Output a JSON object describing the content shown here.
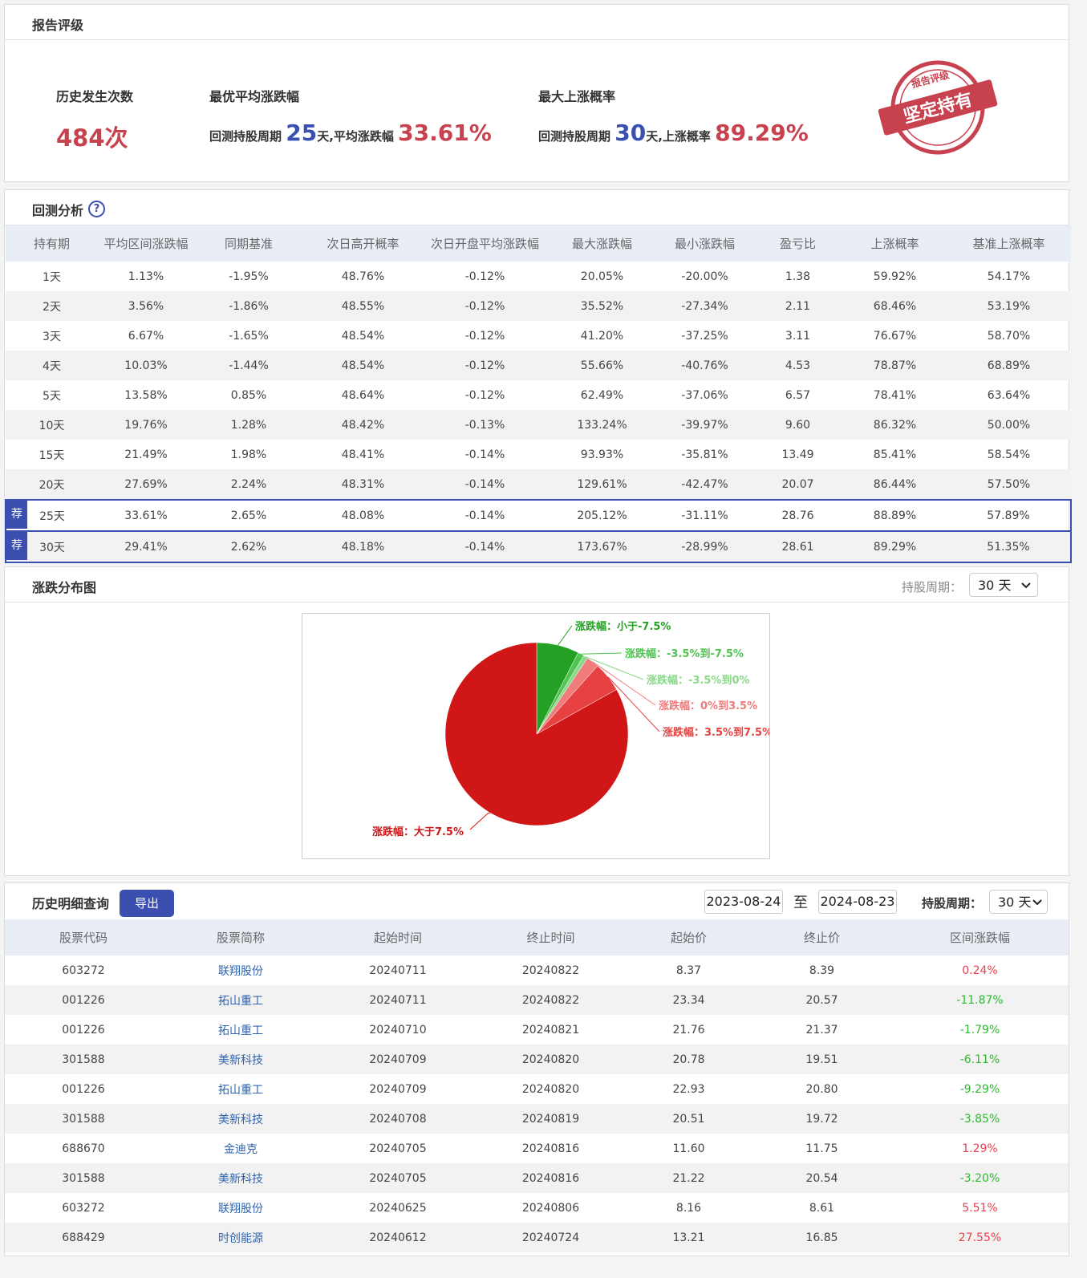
{
  "report": {
    "title": "报告评级",
    "count_label": "历史发生次数",
    "count": "484次",
    "best_avg_label": "最优平均涨跌幅",
    "best_avg_prefix": "回测持股周期",
    "best_avg_days": "25",
    "best_avg_mid": "天,平均涨跌幅",
    "best_avg_value": "33.61%",
    "max_up_label": "最大上涨概率",
    "max_up_prefix": "回测持股周期",
    "max_up_days": "30",
    "max_up_mid": "天,上涨概率",
    "max_up_value": "89.29%",
    "stamp_top": "报告评级",
    "stamp_main": "坚定持有"
  },
  "backtest": {
    "title": "回测分析",
    "help": "?",
    "columns": [
      "持有期",
      "平均区间涨跌幅",
      "同期基准",
      "次日高开概率",
      "次日开盘平均涨跌幅",
      "最大涨跌幅",
      "最小涨跌幅",
      "盈亏比",
      "上涨概率",
      "基准上涨概率"
    ],
    "rows": [
      {
        "cells": [
          "1天",
          "1.13%",
          "-1.95%",
          "48.76%",
          "-0.12%",
          "20.05%",
          "-20.00%",
          "1.38",
          "59.92%",
          "54.17%"
        ]
      },
      {
        "cells": [
          "2天",
          "3.56%",
          "-1.86%",
          "48.55%",
          "-0.12%",
          "35.52%",
          "-27.34%",
          "2.11",
          "68.46%",
          "53.19%"
        ]
      },
      {
        "cells": [
          "3天",
          "6.67%",
          "-1.65%",
          "48.54%",
          "-0.12%",
          "41.20%",
          "-37.25%",
          "3.11",
          "76.67%",
          "58.70%"
        ]
      },
      {
        "cells": [
          "4天",
          "10.03%",
          "-1.44%",
          "48.54%",
          "-0.12%",
          "55.66%",
          "-40.76%",
          "4.53",
          "78.87%",
          "68.89%"
        ]
      },
      {
        "cells": [
          "5天",
          "13.58%",
          "0.85%",
          "48.64%",
          "-0.12%",
          "62.49%",
          "-37.06%",
          "6.57",
          "78.41%",
          "63.64%"
        ]
      },
      {
        "cells": [
          "10天",
          "19.76%",
          "1.28%",
          "48.42%",
          "-0.13%",
          "133.24%",
          "-39.97%",
          "9.60",
          "86.32%",
          "50.00%"
        ]
      },
      {
        "cells": [
          "15天",
          "21.49%",
          "1.98%",
          "48.41%",
          "-0.14%",
          "93.93%",
          "-35.81%",
          "13.49",
          "85.41%",
          "58.54%"
        ]
      },
      {
        "cells": [
          "20天",
          "27.69%",
          "2.24%",
          "48.31%",
          "-0.14%",
          "129.61%",
          "-42.47%",
          "20.07",
          "86.44%",
          "57.50%"
        ]
      },
      {
        "tag": "荐",
        "cells": [
          "25天",
          "33.61%",
          "2.65%",
          "48.08%",
          "-0.14%",
          "205.12%",
          "-31.11%",
          "28.76",
          "88.89%",
          "57.89%"
        ]
      },
      {
        "tag": "荐",
        "cells": [
          "30天",
          "29.41%",
          "2.62%",
          "48.18%",
          "-0.14%",
          "173.67%",
          "-28.99%",
          "28.61",
          "89.29%",
          "51.35%"
        ]
      }
    ]
  },
  "distribution": {
    "title": "涨跌分布图",
    "period_label": "持股周期：",
    "period": "30 天"
  },
  "chart_data": {
    "type": "pie",
    "categories": [
      "涨跌幅：小于-7.5%",
      "涨跌幅：-3.5%到-7.5%",
      "涨跌幅：-3.5%到0%",
      "涨跌幅：0%到3.5%",
      "涨跌幅：3.5%到7.5%",
      "涨跌幅：大于7.5%"
    ],
    "values": [
      7.5,
      1.1,
      0.8,
      2.2,
      5.3,
      83.1
    ],
    "colors": [
      "#24a024",
      "#4fc44f",
      "#8ad88a",
      "#f07b7b",
      "#e84141",
      "#d01616"
    ]
  },
  "history": {
    "title": "历史明细查询",
    "export": "导出",
    "date_from": "2023-08-24",
    "date_sep": "至",
    "date_to": "2024-08-23",
    "period_label": "持股周期：",
    "period": "30 天",
    "columns": [
      "股票代码",
      "股票简称",
      "起始时间",
      "终止时间",
      "起始价",
      "终止价",
      "区间涨跌幅"
    ],
    "rows": [
      [
        "603272",
        "联翔股份",
        "20240711",
        "20240822",
        "8.37",
        "8.39",
        "0.24%"
      ],
      [
        "001226",
        "拓山重工",
        "20240711",
        "20240822",
        "23.34",
        "20.57",
        "-11.87%"
      ],
      [
        "001226",
        "拓山重工",
        "20240710",
        "20240821",
        "21.76",
        "21.37",
        "-1.79%"
      ],
      [
        "301588",
        "美新科技",
        "20240709",
        "20240820",
        "20.78",
        "19.51",
        "-6.11%"
      ],
      [
        "001226",
        "拓山重工",
        "20240709",
        "20240820",
        "22.93",
        "20.80",
        "-9.29%"
      ],
      [
        "301588",
        "美新科技",
        "20240708",
        "20240819",
        "20.51",
        "19.72",
        "-3.85%"
      ],
      [
        "688670",
        "金迪克",
        "20240705",
        "20240816",
        "11.60",
        "11.75",
        "1.29%"
      ],
      [
        "301588",
        "美新科技",
        "20240705",
        "20240816",
        "21.22",
        "20.54",
        "-3.20%"
      ],
      [
        "603272",
        "联翔股份",
        "20240625",
        "20240806",
        "8.16",
        "8.61",
        "5.51%"
      ],
      [
        "688429",
        "时创能源",
        "20240612",
        "20240724",
        "13.21",
        "16.85",
        "27.55%"
      ]
    ]
  }
}
